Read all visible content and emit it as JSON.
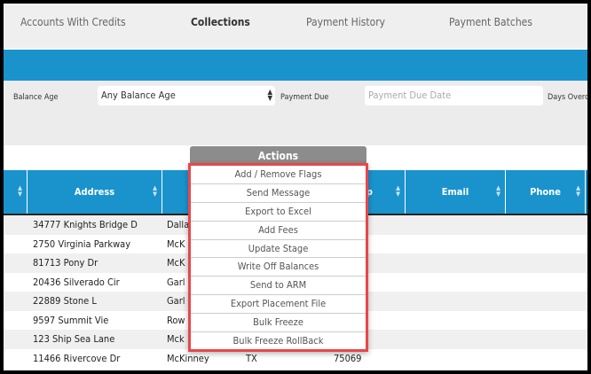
{
  "tabs": [
    {
      "label": "Accounts With Credits"
    },
    {
      "label": "Collections",
      "active": true
    },
    {
      "label": "Payment History"
    },
    {
      "label": "Payment Batches"
    }
  ],
  "filters": {
    "balance_age_label": "Balance Age",
    "balance_age_value": "Any Balance Age",
    "payment_due_label": "Payment Due",
    "payment_due_placeholder": "Payment Due Date",
    "days_overdue_label": "Days Overd"
  },
  "table": {
    "columns": [
      "",
      "Address",
      "",
      "Zip",
      "Email",
      "Phone"
    ],
    "rows": [
      {
        "address": "34777 Knights Bridge D",
        "city": "Dalla",
        "state": "",
        "zip": ""
      },
      {
        "address": "2750 Virginia Parkway",
        "city": "McK",
        "state": "",
        "zip": ""
      },
      {
        "address": "81713 Pony Dr",
        "city": "McK",
        "state": "",
        "zip": ""
      },
      {
        "address": "20436 Silverado Cir",
        "city": "Garl",
        "state": "",
        "zip": ""
      },
      {
        "address": "22889 Stone L",
        "city": "Garl",
        "state": "",
        "zip": ""
      },
      {
        "address": "9597 Summit Vie",
        "city": "Row",
        "state": "",
        "zip": ""
      },
      {
        "address": "123 Ship Sea Lane",
        "city": "Mck",
        "state": "",
        "zip": ""
      },
      {
        "address": "11466 Rivercove Dr",
        "city": "McKinney",
        "state": "TX",
        "zip": "75069"
      }
    ]
  },
  "actions": {
    "label": "Actions",
    "items": [
      "Add / Remove Flags",
      "Send Message",
      "Export to Excel",
      "Add Fees",
      "Update Stage",
      "Write Off Balances",
      "Send to ARM",
      "Export Placement File",
      "Bulk Freeze",
      "Bulk Freeze RollBack"
    ]
  },
  "colors": {
    "accent": "#1a93cd",
    "highlight": "#e8474a"
  }
}
